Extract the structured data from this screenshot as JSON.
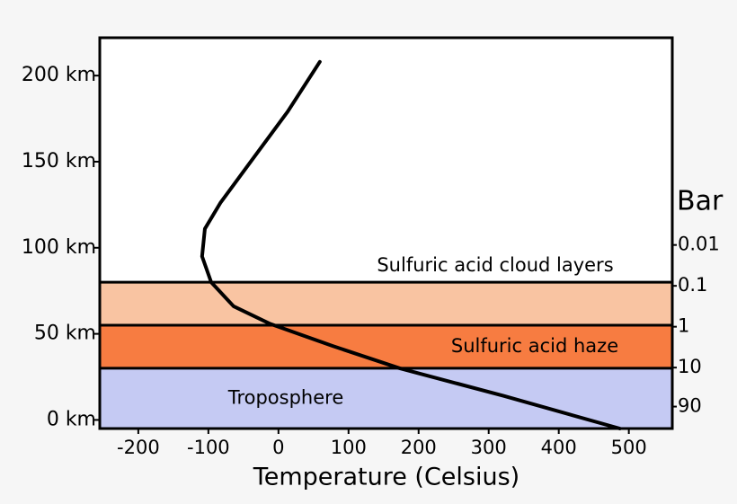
{
  "chart_data": {
    "type": "line",
    "x_label": "Temperature (Celsius)",
    "y2_label": "Bar",
    "xlim": [
      -255,
      562
    ],
    "xticks": [
      -200,
      -100,
      0,
      100,
      200,
      300,
      400,
      500
    ],
    "ylim": [
      -5,
      222
    ],
    "yticks": [
      {
        "value": 0,
        "label": "0 km"
      },
      {
        "value": 50,
        "label": "50 km"
      },
      {
        "value": 100,
        "label": "100 km"
      },
      {
        "value": 150,
        "label": "150 km"
      },
      {
        "value": 200,
        "label": "200 km"
      }
    ],
    "y2scale": "log",
    "y2lim": [
      8.5e-08,
      310
    ],
    "y2ticks": [
      0.01,
      0.1,
      1,
      10,
      90
    ],
    "bands": [
      {
        "label": "Sulfuric acid cloud layers",
        "range": [
          55,
          80
        ],
        "color": "#f9c4a2"
      },
      {
        "label": "Sulfuric acid haze",
        "range": [
          30,
          55
        ],
        "color": "#f77c41"
      },
      {
        "label": "Troposphere",
        "range": [
          -5,
          30
        ],
        "color": "#c5caf3"
      }
    ],
    "series": [
      {
        "color": "#000000",
        "x": [
          487,
          321,
          173,
          77,
          -13,
          -64,
          -96,
          -109,
          -105,
          -83,
          -45,
          13,
          59
        ],
        "values": [
          -5,
          14,
          30,
          43,
          56,
          66,
          80,
          95,
          111,
          126,
          147,
          179,
          208
        ]
      }
    ]
  }
}
